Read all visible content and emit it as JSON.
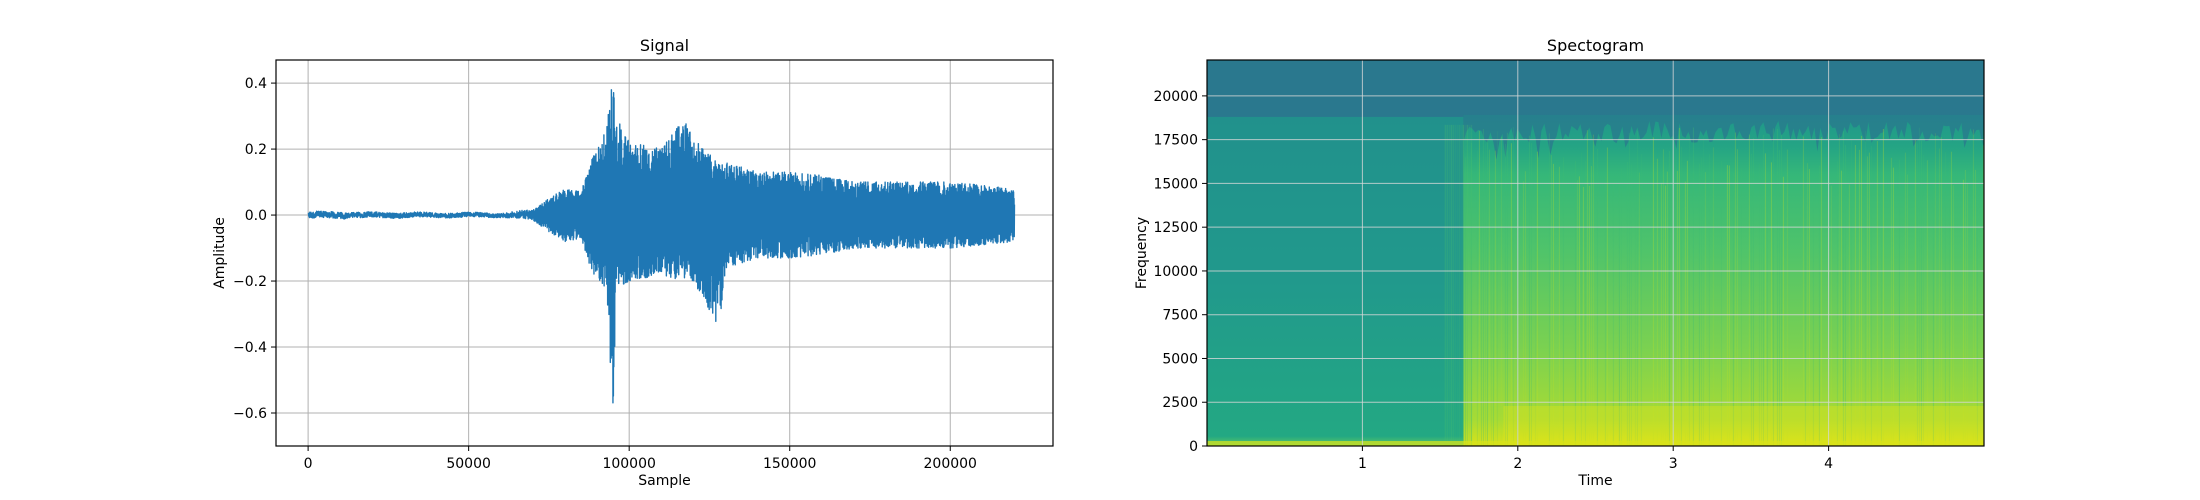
{
  "chart_data": [
    {
      "type": "line",
      "title": "Signal",
      "xlabel": "Sample",
      "ylabel": "Amplitude",
      "xlim": [
        -10000,
        232000
      ],
      "ylim": [
        -0.7,
        0.47
      ],
      "x_ticks": [
        0,
        50000,
        100000,
        150000,
        200000
      ],
      "x_tick_labels": [
        "0",
        "50000",
        "100000",
        "150000",
        "200000"
      ],
      "y_ticks": [
        0.4,
        0.2,
        0.0,
        -0.2,
        -0.4,
        -0.6
      ],
      "y_tick_labels": [
        "0.4",
        "0.2",
        "0.0",
        "−0.2",
        "−0.4",
        "−0.6"
      ],
      "grid": true,
      "color": "#1f77b4",
      "series": [
        {
          "x": [
            0,
            10000,
            20000,
            30000,
            40000,
            50000,
            60000,
            70000,
            75000,
            80000,
            85000,
            88000,
            90000,
            93000,
            95000,
            96000,
            100000,
            110000,
            117000,
            120000,
            128000,
            130000,
            140000,
            150000,
            160000,
            170000,
            180000,
            190000,
            200000,
            210000,
            220000
          ],
          "upper": [
            0.01,
            0.01,
            0.008,
            0.008,
            0.007,
            0.007,
            0.006,
            0.015,
            0.05,
            0.08,
            0.07,
            0.16,
            0.2,
            0.27,
            0.42,
            0.3,
            0.22,
            0.2,
            0.29,
            0.23,
            0.16,
            0.16,
            0.13,
            0.13,
            0.12,
            0.1,
            0.1,
            0.1,
            0.1,
            0.09,
            0.08
          ],
          "lower": [
            -0.01,
            -0.012,
            -0.008,
            -0.008,
            -0.007,
            -0.007,
            -0.006,
            -0.015,
            -0.05,
            -0.08,
            -0.07,
            -0.16,
            -0.2,
            -0.22,
            -0.65,
            -0.22,
            -0.2,
            -0.18,
            -0.2,
            -0.2,
            -0.34,
            -0.16,
            -0.13,
            -0.13,
            -0.12,
            -0.1,
            -0.1,
            -0.1,
            -0.1,
            -0.09,
            -0.08
          ]
        }
      ]
    },
    {
      "type": "heatmap",
      "title": "Spectogram",
      "xlabel": "Time",
      "ylabel": "Frequency",
      "xlim": [
        0,
        5
      ],
      "ylim": [
        0,
        22050
      ],
      "x_ticks": [
        1,
        2,
        3,
        4
      ],
      "x_tick_labels": [
        "1",
        "2",
        "3",
        "4"
      ],
      "y_ticks": [
        0,
        2500,
        5000,
        7500,
        10000,
        12500,
        15000,
        17500,
        20000
      ],
      "y_tick_labels": [
        "0",
        "2500",
        "5000",
        "7500",
        "10000",
        "12500",
        "15000",
        "17500",
        "20000"
      ],
      "grid": true,
      "colormap": "viridis",
      "colors": {
        "low": "#2a788e",
        "mid": "#22a884",
        "high": "#7ad151",
        "peak": "#e5e419"
      },
      "onset_time": 1.65,
      "cutoff_frequency": 18800
    }
  ]
}
